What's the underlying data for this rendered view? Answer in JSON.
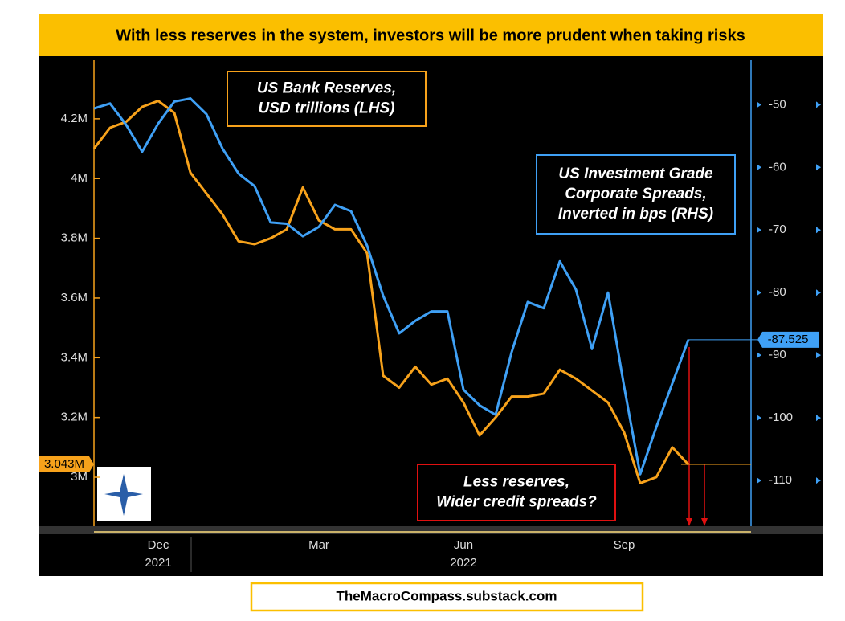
{
  "chart_data": {
    "type": "line",
    "title": "With less reserves in the system, investors will be more prudent when taking risks",
    "footer": "TheMacroCompass.substack.com",
    "categories": [
      null,
      null,
      null,
      null,
      "Dec",
      null,
      null,
      null,
      null,
      null,
      null,
      null,
      null,
      null,
      "Mar",
      null,
      null,
      null,
      null,
      null,
      null,
      null,
      null,
      "Jun",
      null,
      null,
      null,
      null,
      null,
      null,
      null,
      null,
      null,
      "Sep",
      null,
      null,
      null,
      null
    ],
    "x_group_labels": [
      "2021",
      "2022"
    ],
    "series": [
      {
        "name": "US Bank Reserves",
        "color": "#f7a21b",
        "axis": "y",
        "values": [
          4.1,
          4.17,
          4.19,
          4.24,
          4.26,
          4.22,
          4.02,
          3.95,
          3.88,
          3.79,
          3.78,
          3.8,
          3.83,
          3.97,
          3.86,
          3.83,
          3.83,
          3.75,
          3.34,
          3.3,
          3.37,
          3.31,
          3.33,
          3.25,
          3.14,
          3.2,
          3.27,
          3.27,
          3.28,
          3.36,
          3.33,
          3.29,
          3.25,
          3.15,
          2.98,
          3.0,
          3.1,
          3.043
        ],
        "last_label": "3.043M"
      },
      {
        "name": "US Investment Grade Corporate Spreads",
        "color": "#3fa0f5",
        "axis": "y2",
        "values": [
          -50.6,
          -49.8,
          -53.2,
          -57.5,
          -53,
          -49.5,
          -49,
          -51.5,
          -57,
          -61,
          -63,
          -68.8,
          -69,
          -71,
          -69.5,
          -66,
          -67,
          -72.5,
          -80.5,
          -86.5,
          -84.5,
          -83,
          -83,
          -95.5,
          -98,
          -99.5,
          -89.5,
          -81.5,
          -82.5,
          -75,
          -79.5,
          -89,
          -80,
          -95,
          -109,
          -101.5,
          -94.5,
          -87.525
        ],
        "last_label": "-87.525"
      }
    ],
    "ylim": [
      2.836,
      4.396
    ],
    "yticks": [
      {
        "value": 3,
        "label": "3M"
      },
      {
        "value": 3.2,
        "label": "3.2M"
      },
      {
        "value": 3.4,
        "label": "3.4M"
      },
      {
        "value": 3.6,
        "label": "3.6M"
      },
      {
        "value": 3.8,
        "label": "3.8M"
      },
      {
        "value": 4,
        "label": "4M"
      },
      {
        "value": 4.2,
        "label": "4.2M"
      }
    ],
    "y2lim": [
      -117.3,
      -42.9
    ],
    "y2ticks": [
      -110,
      -100,
      -90,
      -80,
      -70,
      -60,
      -50
    ],
    "grid": false,
    "annotations": [
      {
        "lines": [
          "US Bank Reserves,",
          "USD trillions (LHS)"
        ],
        "color": "#f7a21b"
      },
      {
        "lines": [
          "US Investment Grade",
          "Corporate Spreads,",
          "Inverted in bps (RHS)"
        ],
        "color": "#3fa0f5"
      },
      {
        "lines": [
          "Less reserves,",
          "Wider credit spreads?"
        ],
        "color": "#e01010"
      }
    ]
  }
}
